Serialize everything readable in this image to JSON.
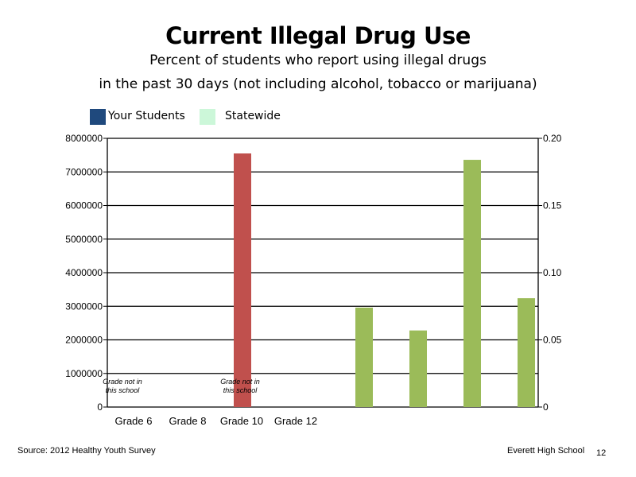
{
  "chart_data": {
    "type": "bar",
    "title": "Current Illegal Drug Use",
    "subtitle_lines": [
      "Percent of students who report using illegal drugs",
      "in the past 30 days (not including alcohol, tobacco or marijuana)"
    ],
    "legend": {
      "placement": "top-left",
      "entries": [
        {
          "name": "Your Students",
          "color": "#1f497d"
        },
        {
          "name": "Statewide",
          "color": "#ccf7d9"
        }
      ]
    },
    "categories": [
      "Grade 6",
      "Grade 8",
      "Grade 10",
      "Grade 12"
    ],
    "left_axis": {
      "ylim": [
        0,
        8000000
      ],
      "ticks": [
        "0",
        "1000000",
        "2000000",
        "3000000",
        "4000000",
        "5000000",
        "6000000",
        "7000000",
        "8000000"
      ],
      "tick_values": [
        0,
        1000000,
        2000000,
        3000000,
        4000000,
        5000000,
        6000000,
        7000000,
        8000000
      ]
    },
    "right_axis": {
      "ylim": [
        0,
        0.2
      ],
      "ticks": [
        "0",
        "0.05",
        "0.10",
        "0.15",
        "0.20"
      ],
      "tick_values": [
        0,
        0.05,
        0.1,
        0.15,
        0.2
      ]
    },
    "grid": true,
    "bars": [
      {
        "axis": "left",
        "value": 7550000,
        "color": "#c0504d"
      },
      {
        "axis": "right",
        "value": 0.074,
        "color": "#9bbb59"
      },
      {
        "axis": "right",
        "value": 0.057,
        "color": "#9bbb59"
      },
      {
        "axis": "right",
        "value": 0.184,
        "color": "#9bbb59"
      },
      {
        "axis": "right",
        "value": 0.081,
        "color": "#9bbb59"
      }
    ],
    "annotations": [
      {
        "lines": [
          "Grade not in",
          "this school"
        ]
      },
      {
        "lines": [
          "Grade not in",
          "this school"
        ]
      }
    ]
  },
  "footer": {
    "source": "Source: 2012 Healthy Youth Survey",
    "school": "Everett High School",
    "page": "12"
  }
}
